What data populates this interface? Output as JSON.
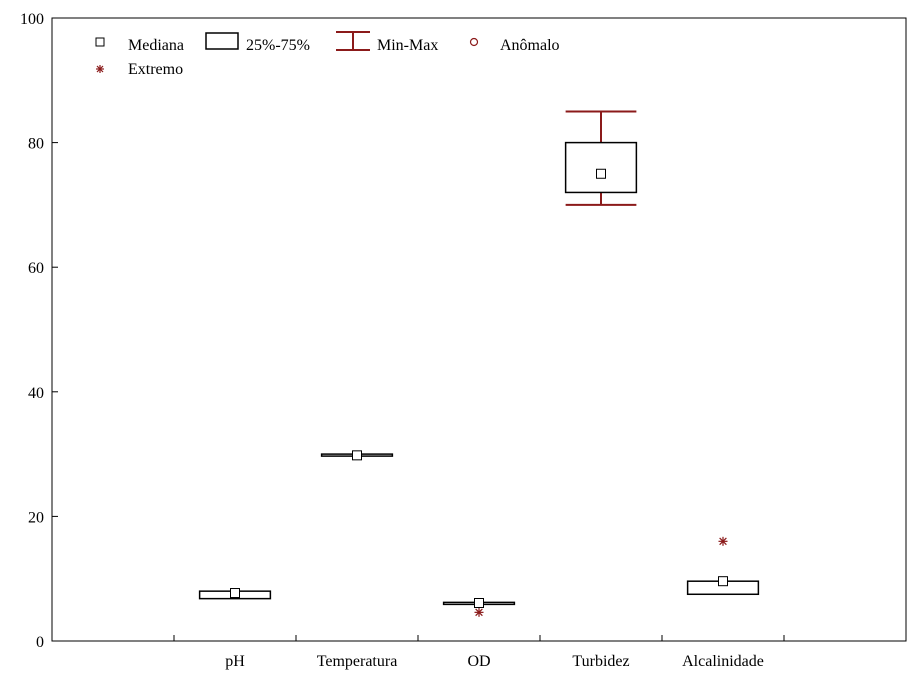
{
  "chart_data": {
    "type": "boxplot",
    "title": "",
    "xlabel": "",
    "ylabel": "",
    "ylim": [
      0,
      100
    ],
    "yticks": [
      0,
      20,
      40,
      60,
      80,
      100
    ],
    "ytick_labels": [
      "0",
      "20",
      "40",
      "60",
      "80",
      "100"
    ],
    "grid": false,
    "legend_position": "top-left",
    "legend": {
      "median": "Mediana",
      "box": "25%-75%",
      "whisker": "Min-Max",
      "outlier": "Anômalo",
      "extreme": "Extremo"
    },
    "categories": [
      "pH",
      "Temperatura",
      "OD",
      "Turbidez",
      "Alcalinidade"
    ],
    "boxes": [
      {
        "category": "pH",
        "min": 6.8,
        "q1": 6.8,
        "median": 7.7,
        "q3": 8.0,
        "max": 8.0,
        "extremes": []
      },
      {
        "category": "Temperatura",
        "min": 29.7,
        "q1": 29.7,
        "median": 29.8,
        "q3": 30.0,
        "max": 30.0,
        "extremes": []
      },
      {
        "category": "OD",
        "min": 6.0,
        "q1": 6.0,
        "median": 6.1,
        "q3": 6.2,
        "max": 6.2,
        "extremes": [
          4.6
        ]
      },
      {
        "category": "Turbidez",
        "min": 70,
        "q1": 72,
        "median": 75,
        "q3": 80,
        "max": 85,
        "extremes": []
      },
      {
        "category": "Alcalinidade",
        "min": 7.5,
        "q1": 7.5,
        "median": 9.6,
        "q3": 9.6,
        "max": 9.6,
        "extremes": [
          16
        ]
      }
    ],
    "colors": {
      "box": "#000000",
      "whisker": "#8b1a1a",
      "outlier": "#8b1a1a",
      "extreme": "#8b1a1a"
    }
  }
}
